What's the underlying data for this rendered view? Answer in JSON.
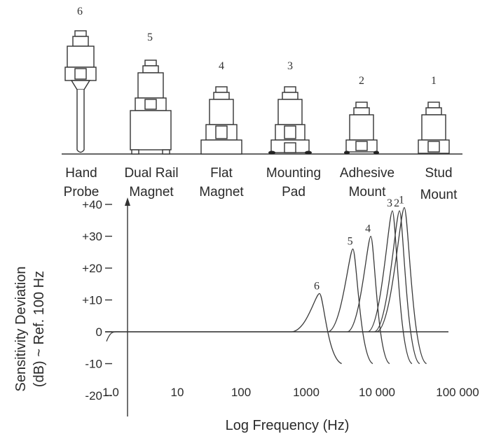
{
  "mounts": [
    {
      "id": "6",
      "label_lines": [
        "Hand",
        "Probe"
      ],
      "kind": "hand-probe"
    },
    {
      "id": "5",
      "label_lines": [
        "Dual Rail",
        "Magnet"
      ],
      "kind": "dual-rail-magnet"
    },
    {
      "id": "4",
      "label_lines": [
        "Flat",
        "Magnet"
      ],
      "kind": "flat-magnet"
    },
    {
      "id": "3",
      "label_lines": [
        "Mounting",
        "Pad"
      ],
      "kind": "mounting-pad"
    },
    {
      "id": "2",
      "label_lines": [
        "Adhesive",
        "Mount"
      ],
      "kind": "adhesive-mount"
    },
    {
      "id": "1",
      "label_lines": [
        "Stud",
        "Mount"
      ],
      "kind": "stud-mount"
    }
  ],
  "chart_data": {
    "type": "line",
    "xlabel": "Log Frequency (Hz)",
    "ylabel_lines": [
      "Sensitivity Deviation",
      "(dB) ~ Ref. 100 Hz"
    ],
    "x_scale": "log",
    "xlim": [
      1,
      100000
    ],
    "ylim": [
      -20,
      40
    ],
    "x_ticks": [
      {
        "value": 1,
        "label": "1.0"
      },
      {
        "value": 10,
        "label": "10"
      },
      {
        "value": 100,
        "label": "100"
      },
      {
        "value": 1000,
        "label": "1000"
      },
      {
        "value": 10000,
        "label": "10 000"
      },
      {
        "value": 100000,
        "label": "100 000"
      }
    ],
    "y_ticks": [
      {
        "value": 40,
        "label": "+40"
      },
      {
        "value": 30,
        "label": "+30"
      },
      {
        "value": 20,
        "label": "+20"
      },
      {
        "value": 10,
        "label": "+10"
      },
      {
        "value": 0,
        "label": "0"
      },
      {
        "value": -10,
        "label": "-10"
      },
      {
        "value": -20,
        "label": "-20"
      }
    ],
    "series": [
      {
        "name": "6",
        "resonance_hz": 1600,
        "peak_db": 12,
        "end_hz": 3500,
        "end_db": -10
      },
      {
        "name": "5",
        "resonance_hz": 5200,
        "peak_db": 26,
        "end_hz": 10500,
        "end_db": -10
      },
      {
        "name": "4",
        "resonance_hz": 9800,
        "peak_db": 30,
        "end_hz": 19000,
        "end_db": -10
      },
      {
        "name": "3",
        "resonance_hz": 21000,
        "peak_db": 38,
        "end_hz": 42000,
        "end_db": -10
      },
      {
        "name": "2",
        "resonance_hz": 27000,
        "peak_db": 38,
        "end_hz": 55000,
        "end_db": -10
      },
      {
        "name": "1",
        "resonance_hz": 32000,
        "peak_db": 39,
        "end_hz": 70000,
        "end_db": -10
      }
    ],
    "low_end": {
      "start_hz": 1,
      "start_db": -3
    }
  }
}
